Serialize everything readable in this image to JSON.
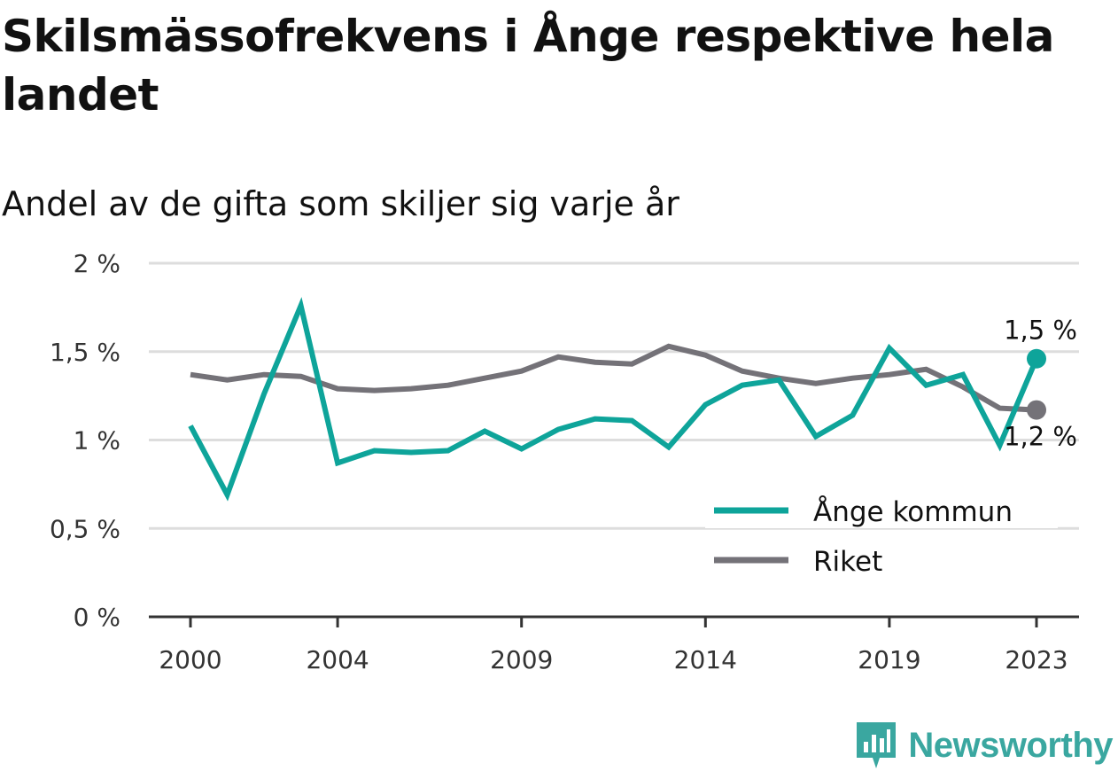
{
  "chart_data": {
    "type": "line",
    "title": "Skilsmässofrekvens i Ånge respektive hela landet",
    "subtitle": "Andel av de gifta som skiljer sig varje år",
    "x": [
      2000,
      2001,
      2002,
      2003,
      2004,
      2005,
      2006,
      2007,
      2008,
      2009,
      2010,
      2011,
      2012,
      2013,
      2014,
      2015,
      2016,
      2017,
      2018,
      2019,
      2020,
      2021,
      2022,
      2023
    ],
    "x_tick_labels": [
      "2000",
      "2004",
      "2009",
      "2014",
      "2019",
      "2023"
    ],
    "x_ticks": [
      2000,
      2004,
      2009,
      2014,
      2019,
      2023
    ],
    "ylim": [
      0,
      2
    ],
    "y_ticks": [
      0,
      0.5,
      1,
      1.5,
      2
    ],
    "y_tick_labels": [
      "0 %",
      "0,5 %",
      "1 %",
      "1,5 %",
      "2 %"
    ],
    "grid": true,
    "legend_position": "bottom-right",
    "series": [
      {
        "name": "Ånge kommun",
        "color": "#0ea49a",
        "values": [
          1.08,
          0.69,
          1.26,
          1.76,
          0.87,
          0.94,
          0.93,
          0.94,
          1.05,
          0.95,
          1.06,
          1.12,
          1.11,
          0.96,
          1.2,
          1.31,
          1.34,
          1.02,
          1.14,
          1.52,
          1.31,
          1.37,
          0.97,
          1.46
        ],
        "end_label": "1,5 %"
      },
      {
        "name": "Riket",
        "color": "#747278",
        "values": [
          1.37,
          1.34,
          1.37,
          1.36,
          1.29,
          1.28,
          1.29,
          1.31,
          1.35,
          1.39,
          1.47,
          1.44,
          1.43,
          1.53,
          1.48,
          1.39,
          1.35,
          1.32,
          1.35,
          1.37,
          1.4,
          1.3,
          1.18,
          1.17
        ],
        "end_label": "1,2 %"
      }
    ]
  },
  "branding": {
    "logo_text": "Newsworthy",
    "logo_color": "#3aa7a0",
    "logo_icon": "bar-chart-badge-icon"
  }
}
